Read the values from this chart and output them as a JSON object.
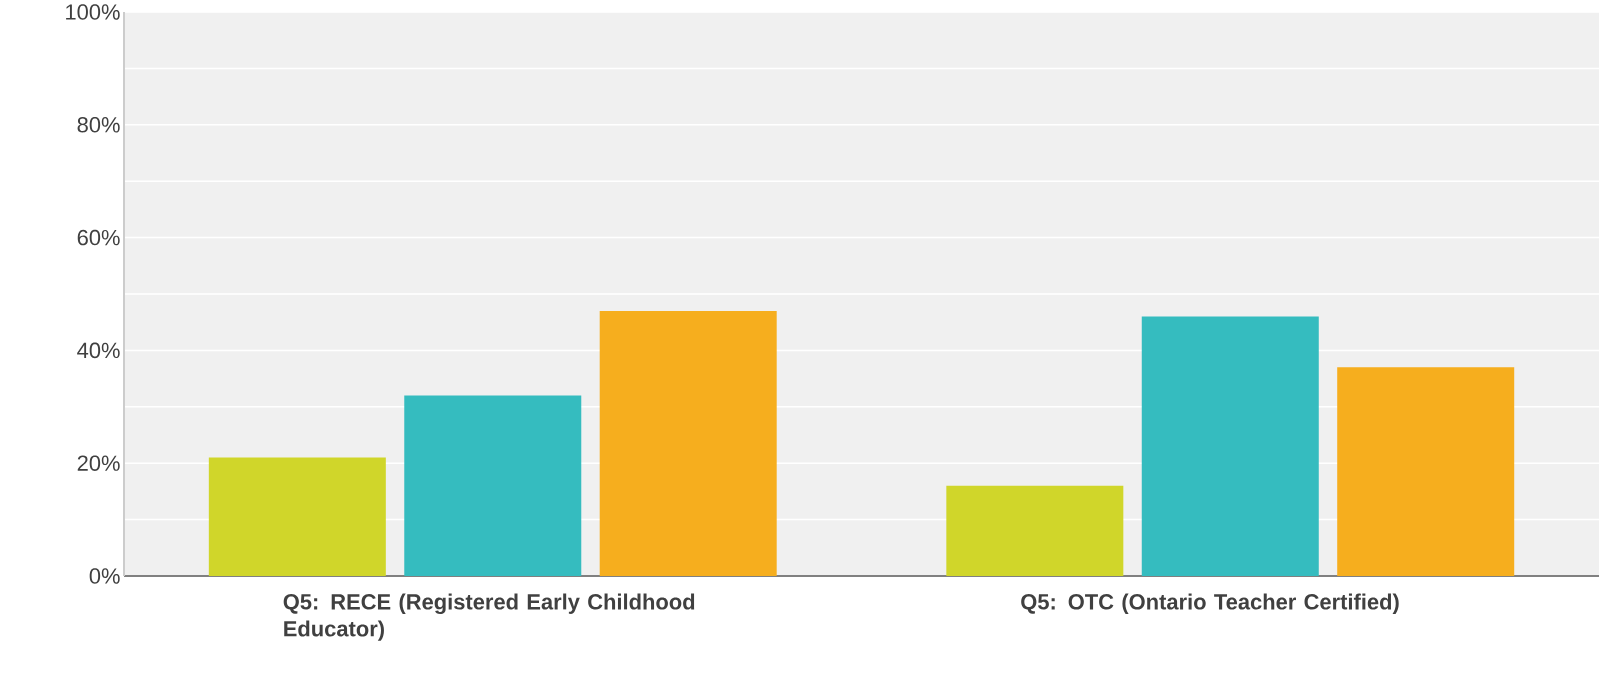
{
  "chart_data": {
    "type": "bar",
    "categories": [
      "Q5: RECE (Registered Early Childhood Educator)",
      "Q5: OTC (Ontario Teacher Certified)"
    ],
    "series": [
      {
        "color": "#d0d62a",
        "values": [
          21,
          16
        ]
      },
      {
        "color": "#35bcbf",
        "values": [
          32,
          46
        ]
      },
      {
        "color": "#f6ae1e",
        "values": [
          47,
          37
        ]
      }
    ],
    "ylim": [
      0,
      100
    ],
    "yticks": [
      {
        "value": 0,
        "label": "0%"
      },
      {
        "value": 10,
        "label": null
      },
      {
        "value": 20,
        "label": "20%"
      },
      {
        "value": 30,
        "label": null
      },
      {
        "value": 40,
        "label": "40%"
      },
      {
        "value": 50,
        "label": null
      },
      {
        "value": 60,
        "label": "60%"
      },
      {
        "value": 70,
        "label": null
      },
      {
        "value": 80,
        "label": "80%"
      },
      {
        "value": 90,
        "label": null
      },
      {
        "value": 100,
        "label": "100%"
      }
    ],
    "grid": "y"
  }
}
